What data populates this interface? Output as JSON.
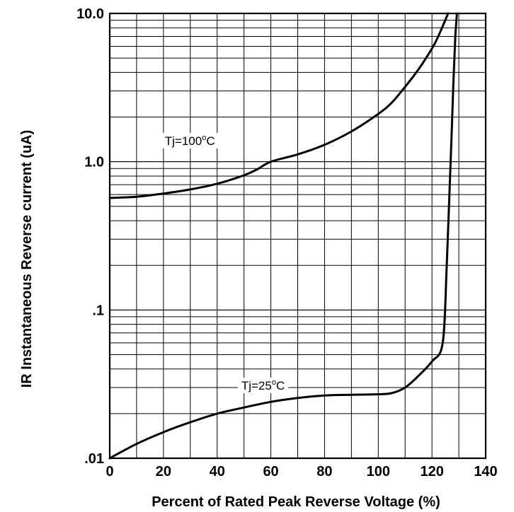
{
  "chart_data": {
    "type": "line",
    "title": "",
    "xlabel": "Percent of Rated Peak Reverse Voltage (%)",
    "ylabel_prefix": "IR",
    "ylabel_rest": " Instantaneous Reverse current (uA)",
    "xlim": [
      0,
      140
    ],
    "ylim": [
      0.01,
      10
    ],
    "yscale": "log",
    "grid": true,
    "x_ticks": [
      0,
      20,
      40,
      60,
      80,
      100,
      120,
      140
    ],
    "y_ticks": [
      {
        "value": 0.01,
        "label": ".01"
      },
      {
        "value": 0.1,
        "label": ".1"
      },
      {
        "value": 1,
        "label": "1.0"
      },
      {
        "value": 10,
        "label": "10.0"
      }
    ],
    "series": [
      {
        "label_main": "Tj=100",
        "label_sup": "o",
        "label_tail": "C",
        "label_at": [
          20.5,
          1.3
        ],
        "x": [
          0,
          10,
          20,
          30,
          40,
          50,
          55,
          60,
          70,
          80,
          90,
          100,
          105,
          110,
          115,
          120,
          122,
          124,
          126
        ],
        "y": [
          0.57,
          0.58,
          0.61,
          0.65,
          0.71,
          0.81,
          0.89,
          1.0,
          1.12,
          1.3,
          1.6,
          2.1,
          2.5,
          3.2,
          4.2,
          5.8,
          6.8,
          8.2,
          10
        ]
      },
      {
        "label_main": "Tj=25",
        "label_sup": "o",
        "label_tail": "C",
        "label_at": [
          49,
          0.029
        ],
        "x": [
          0,
          10,
          20,
          30,
          40,
          50,
          60,
          70,
          80,
          90,
          100,
          105,
          110,
          115,
          120,
          124,
          125.5,
          126.5,
          127.3,
          128.0,
          128.7,
          129.3
        ],
        "y": [
          0.01,
          0.0125,
          0.015,
          0.0175,
          0.02,
          0.022,
          0.024,
          0.0255,
          0.0265,
          0.0268,
          0.027,
          0.0275,
          0.03,
          0.036,
          0.045,
          0.06,
          0.2,
          0.6,
          1.5,
          3.5,
          7,
          10
        ]
      }
    ]
  }
}
